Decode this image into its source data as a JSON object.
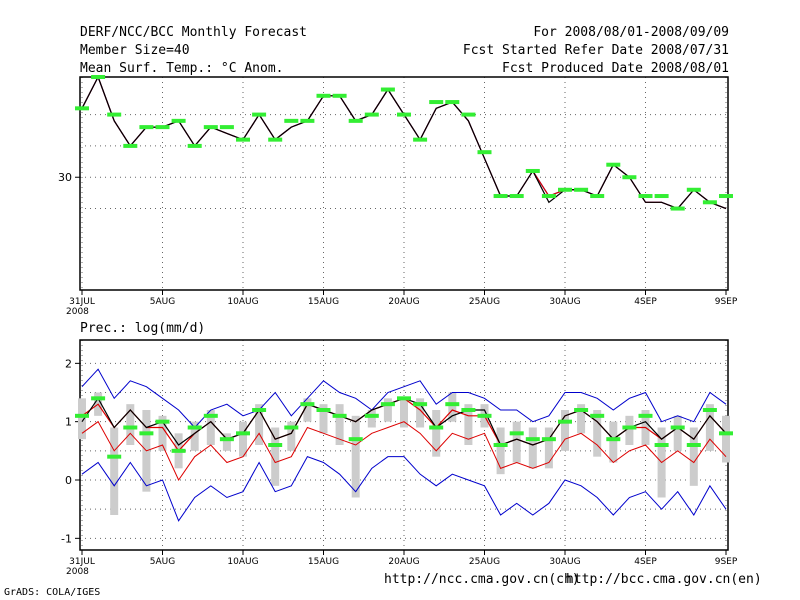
{
  "header": {
    "title": "DERF/NCC/BCC Monthly Forecast",
    "member": "Member Size=40",
    "variable": "Mean Surf. Temp.: °C Anom.",
    "period": "For 2008/08/01-2008/09/09",
    "started": "Fcst Started Refer Date 2008/07/31",
    "produced": "Fcst Produced Date 2008/08/01"
  },
  "footer": {
    "grads": "GrADS: COLA/IGES",
    "url_ncc": "http://ncc.cma.gov.cn(ch)",
    "url_bcc": "http://bcc.cma.gov.cn(en)"
  },
  "colors": {
    "ensemble_max_min": "#0000cc",
    "mean_line": "#000000",
    "member_line": "#dd0000",
    "observed_marker": "#33ee33",
    "spread_bar": "#cccccc"
  },
  "chart_data": [
    {
      "type": "line",
      "title": "Mean Surf. Temp.: °C Anom.",
      "xlabel": "",
      "ylabel": "",
      "x_tick_labels": [
        "31JUL",
        "5AUG",
        "10AUG",
        "15AUG",
        "20AUG",
        "25AUG",
        "30AUG",
        "4SEP",
        "9SEP"
      ],
      "x_sub_label": "2008",
      "y_tick_labels": [
        "30"
      ],
      "ylim": [
        28.2,
        31.6
      ],
      "grid": true,
      "x": [
        0,
        1,
        2,
        3,
        4,
        5,
        6,
        7,
        8,
        9,
        10,
        11,
        12,
        13,
        14,
        15,
        16,
        17,
        18,
        19,
        20,
        21,
        22,
        23,
        24,
        25,
        26,
        27,
        28,
        29,
        30,
        31,
        32,
        33,
        34,
        35,
        36,
        37,
        38,
        39,
        40
      ],
      "series": [
        {
          "name": "mean",
          "values": [
            31.1,
            31.6,
            30.9,
            30.5,
            30.8,
            30.8,
            30.9,
            30.5,
            30.8,
            30.7,
            30.6,
            31.0,
            30.6,
            30.8,
            30.9,
            31.3,
            31.3,
            30.9,
            31.0,
            31.4,
            31.0,
            30.6,
            31.1,
            31.2,
            30.9,
            30.3,
            29.7,
            29.7,
            30.1,
            29.6,
            29.8,
            29.8,
            29.7,
            30.2,
            30.0,
            29.6,
            29.6,
            29.5,
            29.8,
            29.6,
            29.5
          ]
        },
        {
          "name": "member_b",
          "values": [
            31.1,
            31.6,
            30.9,
            30.5,
            30.8,
            30.8,
            30.9,
            30.5,
            30.8,
            30.7,
            30.6,
            31.0,
            30.6,
            30.8,
            30.9,
            31.3,
            31.3,
            30.9,
            31.0,
            31.4,
            31.0,
            30.6,
            31.1,
            31.2,
            30.9,
            30.3,
            29.7,
            29.7,
            30.1,
            29.7,
            29.8,
            29.8,
            29.7,
            30.2,
            30.0,
            29.6,
            29.6,
            29.5,
            29.8,
            29.6,
            29.5
          ]
        },
        {
          "name": "member_r",
          "values": [
            31.1,
            31.6,
            30.9,
            30.5,
            30.8,
            30.8,
            30.9,
            30.5,
            30.8,
            30.7,
            30.6,
            31.0,
            30.6,
            30.8,
            30.9,
            31.3,
            31.3,
            30.9,
            31.0,
            31.4,
            31.0,
            30.6,
            31.1,
            31.2,
            30.9,
            30.3,
            29.7,
            29.7,
            30.1,
            29.7,
            29.8,
            29.8,
            29.7,
            30.2,
            30.0,
            29.6,
            29.6,
            29.5,
            29.8,
            29.6,
            29.5
          ]
        },
        {
          "name": "observed",
          "values": [
            31.1,
            31.6,
            31.0,
            30.5,
            30.8,
            30.8,
            30.9,
            30.5,
            30.8,
            30.8,
            30.6,
            31.0,
            30.6,
            30.9,
            30.9,
            31.3,
            31.3,
            30.9,
            31.0,
            31.4,
            31.0,
            30.6,
            31.2,
            31.2,
            31.0,
            30.4,
            29.7,
            29.7,
            30.1,
            29.7,
            29.8,
            29.8,
            29.7,
            30.2,
            30.0,
            29.7,
            29.7,
            29.5,
            29.8,
            29.6,
            29.7
          ]
        }
      ]
    },
    {
      "type": "line",
      "title": "Prec.: log(mm/d)",
      "xlabel": "",
      "ylabel": "",
      "x_tick_labels": [
        "31JUL",
        "5AUG",
        "10AUG",
        "15AUG",
        "20AUG",
        "25AUG",
        "30AUG",
        "4SEP",
        "9SEP"
      ],
      "x_sub_label": "2008",
      "y_tick_labels": [
        "2",
        "1",
        "0",
        "-1"
      ],
      "ylim": [
        -1.2,
        2.4
      ],
      "grid": true,
      "x": [
        0,
        1,
        2,
        3,
        4,
        5,
        6,
        7,
        8,
        9,
        10,
        11,
        12,
        13,
        14,
        15,
        16,
        17,
        18,
        19,
        20,
        21,
        22,
        23,
        24,
        25,
        26,
        27,
        28,
        29,
        30,
        31,
        32,
        33,
        34,
        35,
        36,
        37,
        38,
        39,
        40
      ],
      "series": [
        {
          "name": "max",
          "values": [
            1.6,
            1.9,
            1.4,
            1.7,
            1.6,
            1.4,
            1.2,
            0.9,
            1.2,
            1.3,
            1.1,
            1.2,
            1.5,
            1.1,
            1.4,
            1.7,
            1.5,
            1.4,
            1.2,
            1.5,
            1.6,
            1.7,
            1.3,
            1.5,
            1.5,
            1.4,
            1.2,
            1.2,
            1.0,
            1.1,
            1.5,
            1.5,
            1.4,
            1.2,
            1.4,
            1.5,
            1.0,
            1.1,
            1.0,
            1.5,
            1.3
          ]
        },
        {
          "name": "mean",
          "values": [
            1.0,
            1.4,
            0.9,
            1.2,
            0.9,
            1.0,
            0.6,
            0.8,
            1.0,
            0.7,
            0.8,
            1.2,
            0.7,
            0.8,
            1.3,
            1.2,
            1.1,
            1.0,
            1.2,
            1.3,
            1.4,
            1.3,
            0.9,
            1.1,
            1.2,
            1.2,
            0.6,
            0.7,
            0.6,
            0.7,
            1.1,
            1.2,
            1.0,
            0.7,
            0.9,
            1.0,
            0.7,
            0.9,
            0.7,
            1.1,
            0.8
          ]
        },
        {
          "name": "member",
          "values": [
            1.1,
            1.3,
            0.9,
            1.2,
            0.9,
            0.9,
            0.5,
            0.8,
            1.0,
            0.7,
            0.8,
            1.2,
            0.7,
            0.8,
            1.3,
            1.2,
            1.1,
            1.0,
            1.2,
            1.3,
            1.4,
            1.2,
            0.9,
            1.2,
            1.1,
            1.1,
            0.6,
            0.7,
            0.6,
            0.7,
            1.1,
            1.2,
            1.0,
            0.7,
            0.9,
            0.9,
            0.7,
            0.9,
            0.7,
            1.1,
            0.8
          ]
        },
        {
          "name": "lower_member",
          "values": [
            0.8,
            1.0,
            0.5,
            0.8,
            0.5,
            0.6,
            0.0,
            0.4,
            0.6,
            0.3,
            0.4,
            0.8,
            0.3,
            0.4,
            0.9,
            0.8,
            0.7,
            0.6,
            0.8,
            0.9,
            1.0,
            0.8,
            0.5,
            0.8,
            0.7,
            0.8,
            0.2,
            0.3,
            0.2,
            0.3,
            0.7,
            0.8,
            0.6,
            0.3,
            0.5,
            0.6,
            0.3,
            0.5,
            0.3,
            0.7,
            0.4
          ]
        },
        {
          "name": "min",
          "values": [
            0.1,
            0.3,
            -0.1,
            0.3,
            -0.1,
            0.0,
            -0.7,
            -0.3,
            -0.1,
            -0.3,
            -0.2,
            0.3,
            -0.2,
            -0.1,
            0.4,
            0.3,
            0.1,
            -0.2,
            0.2,
            0.4,
            0.4,
            0.1,
            -0.1,
            0.1,
            0.0,
            -0.1,
            -0.6,
            -0.4,
            -0.6,
            -0.4,
            0.0,
            -0.1,
            -0.3,
            -0.6,
            -0.3,
            -0.2,
            -0.5,
            -0.2,
            -0.6,
            -0.1,
            -0.5
          ]
        },
        {
          "name": "observed",
          "values": [
            1.1,
            1.4,
            0.4,
            0.9,
            0.8,
            1.0,
            0.5,
            0.9,
            1.1,
            0.7,
            0.8,
            1.2,
            0.6,
            0.9,
            1.3,
            1.2,
            1.1,
            0.7,
            1.1,
            1.3,
            1.4,
            1.3,
            0.9,
            1.3,
            1.2,
            1.1,
            0.6,
            0.8,
            0.7,
            0.7,
            1.0,
            1.2,
            1.1,
            0.7,
            0.9,
            1.1,
            0.6,
            0.9,
            0.6,
            1.2,
            0.8
          ]
        },
        {
          "name": "spread_high",
          "values": [
            1.4,
            1.5,
            0.9,
            1.3,
            1.2,
            1.1,
            0.8,
            1.0,
            1.2,
            0.8,
            1.0,
            1.3,
            0.9,
            1.0,
            1.4,
            1.3,
            1.3,
            1.1,
            1.2,
            1.4,
            1.4,
            1.4,
            1.2,
            1.5,
            1.3,
            1.3,
            0.9,
            1.0,
            0.9,
            0.9,
            1.2,
            1.3,
            1.2,
            1.0,
            1.1,
            1.2,
            0.9,
            1.1,
            0.9,
            1.3,
            1.1
          ]
        },
        {
          "name": "spread_low",
          "values": [
            0.7,
            1.1,
            -0.6,
            0.6,
            -0.2,
            0.5,
            0.2,
            0.5,
            0.6,
            0.5,
            0.4,
            0.6,
            -0.1,
            0.5,
            1.0,
            0.8,
            0.6,
            -0.3,
            0.9,
            1.0,
            0.9,
            0.9,
            0.4,
            1.0,
            0.6,
            0.9,
            0.1,
            0.3,
            0.2,
            0.2,
            0.5,
            0.8,
            0.4,
            0.3,
            0.6,
            0.6,
            -0.3,
            0.5,
            -0.1,
            0.5,
            0.3
          ]
        }
      ]
    }
  ]
}
